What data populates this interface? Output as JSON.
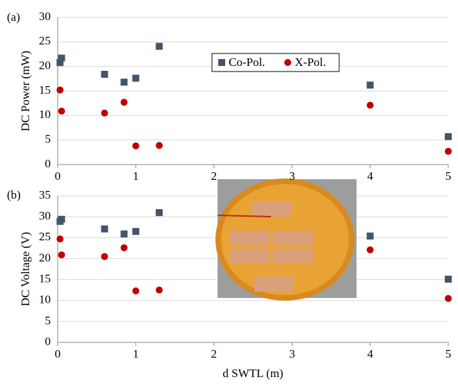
{
  "chart_data": [
    {
      "type": "scatter",
      "panel": "(a)",
      "ylabel": "DC Power (mW)",
      "x": [
        0.03,
        0.05,
        0.6,
        0.85,
        1.0,
        1.3,
        4.0,
        5.0
      ],
      "series": [
        {
          "name": "Co-Pol.",
          "color": "#44546a",
          "marker": "square",
          "values": [
            20.8,
            21.7,
            18.4,
            16.8,
            17.6,
            24.1,
            16.2,
            5.7
          ]
        },
        {
          "name": "X-Pol.",
          "color": "#c00000",
          "marker": "circle",
          "values": [
            15.2,
            10.9,
            10.5,
            12.7,
            3.8,
            3.9,
            12.1,
            2.7
          ]
        }
      ],
      "xlim": [
        0,
        5
      ],
      "xticks": [
        0,
        1,
        2,
        3,
        4,
        5
      ],
      "ylim": [
        0,
        30
      ],
      "yticks": [
        0,
        5,
        10,
        15,
        20,
        25,
        30
      ],
      "grid": true,
      "legend": "upper center"
    },
    {
      "type": "scatter",
      "panel": "(b)",
      "ylabel": "DC Voltage (V)",
      "xlabel": "d SWTL (m)",
      "x": [
        0.03,
        0.05,
        0.6,
        0.85,
        1.0,
        1.3,
        4.0,
        5.0
      ],
      "series": [
        {
          "color": "#44546a",
          "marker": "square",
          "values": [
            28.9,
            29.4,
            27.1,
            25.9,
            26.5,
            31.0,
            25.4,
            15.1
          ]
        },
        {
          "color": "#c00000",
          "marker": "circle",
          "values": [
            24.7,
            20.9,
            20.5,
            22.6,
            12.3,
            12.5,
            22.1,
            10.5
          ]
        }
      ],
      "xlim": [
        0,
        5
      ],
      "xticks": [
        0,
        1,
        2,
        3,
        4,
        5
      ],
      "ylim": [
        0,
        35
      ],
      "yticks": [
        0,
        5,
        10,
        15,
        20,
        25,
        30,
        35
      ],
      "grid": true
    }
  ]
}
